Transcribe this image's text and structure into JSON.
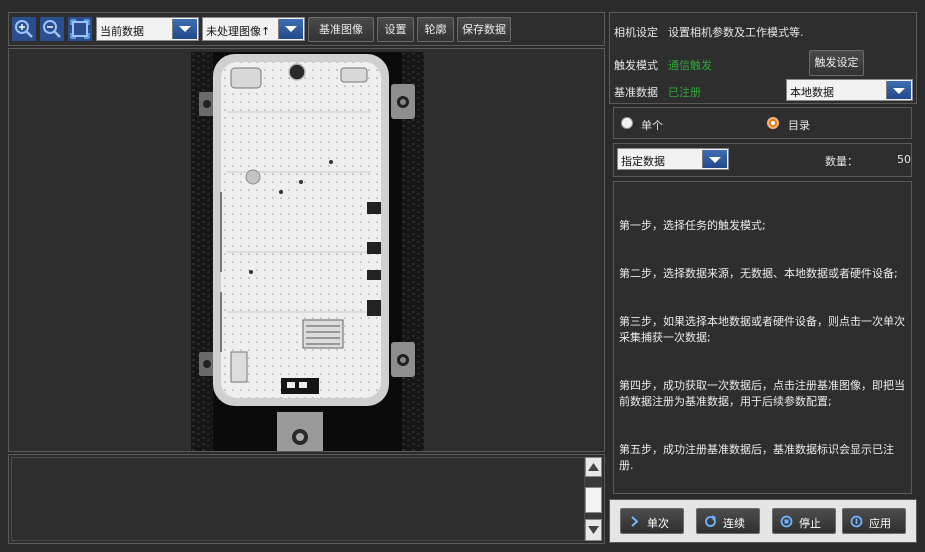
{
  "toolbar": {
    "zoom_in_icon": "zoom-in-icon",
    "zoom_out_icon": "zoom-out-icon",
    "fit_icon": "fit-view-icon",
    "data_source": "当前数据",
    "image_mode": "未处理图像↑",
    "reference_image": "基准图像",
    "settings": "设置",
    "contour": "轮廓",
    "save_data": "保存数据"
  },
  "settings": {
    "title": "相机设定",
    "description": "设置相机参数及工作模式等.",
    "trigger_mode_label": "触发模式",
    "trigger_mode_value": "通信触发",
    "trigger_set_button": "触发设定",
    "reference_label": "基准数据",
    "reference_value": "已注册",
    "reference_source": "本地数据"
  },
  "mode": {
    "single": "单个",
    "directory": "目录",
    "selected": "目录"
  },
  "selection": {
    "data_select": "指定数据",
    "count_label": "数量：",
    "count_value": "50"
  },
  "instructions": [
    "第一步，选择任务的触发模式;",
    "第二步，选择数据来源，无数据、本地数据或者硬件设备;",
    "第三步，如果选择本地数据或者硬件设备，则点击一次单次采集捕获一次数据;",
    "第四步，成功获取一次数据后，点击注册基准图像，即把当前数据注册为基准数据，用于后续参数配置;",
    "第五步，成功注册基准数据后，基准数据标识会显示已注册."
  ],
  "actions": {
    "single": "单次",
    "continuous": "连续",
    "stop": "停止",
    "apply": "应用"
  },
  "colors": {
    "accent_blue": "#2f5ea3",
    "status_green": "#2fa83a",
    "radio_selected": "#e87a1e"
  }
}
